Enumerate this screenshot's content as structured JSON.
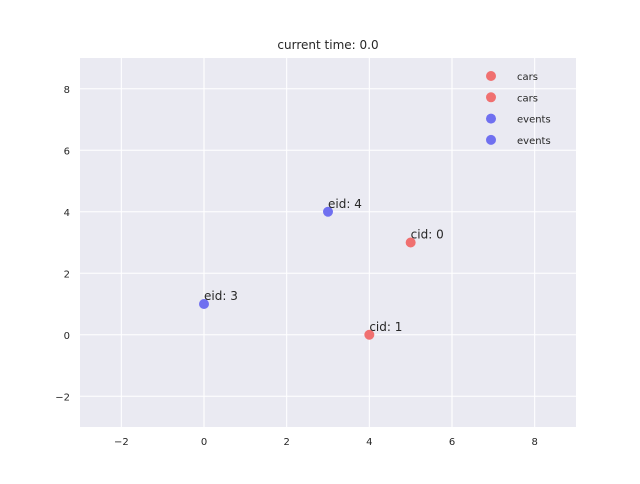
{
  "chart_data": {
    "type": "scatter",
    "title": "current time: 0.0",
    "xlabel": "",
    "ylabel": "",
    "xlim": [
      -3,
      9
    ],
    "ylim": [
      -3,
      9
    ],
    "xticks": [
      -2,
      0,
      2,
      4,
      6,
      8
    ],
    "yticks": [
      -2,
      0,
      2,
      4,
      6,
      8
    ],
    "grid": true,
    "legend_position": "top-right",
    "legend": [
      {
        "label": "cars",
        "color": "#f07070"
      },
      {
        "label": "cars",
        "color": "#f07070"
      },
      {
        "label": "events",
        "color": "#7070f0"
      },
      {
        "label": "events",
        "color": "#7070f0"
      }
    ],
    "series": [
      {
        "name": "cars",
        "color": "#f07070",
        "points": [
          {
            "x": 5,
            "y": 3,
            "label": "cid: 0"
          },
          {
            "x": 4,
            "y": 0,
            "label": "cid: 1"
          }
        ]
      },
      {
        "name": "events",
        "color": "#7070f0",
        "points": [
          {
            "x": 3,
            "y": 4,
            "label": "eid: 4"
          },
          {
            "x": 0,
            "y": 1,
            "label": "eid: 3"
          }
        ]
      }
    ]
  },
  "colors": {
    "axes_background": "#eaeaf2",
    "grid": "#ffffff",
    "text": "#262626"
  }
}
